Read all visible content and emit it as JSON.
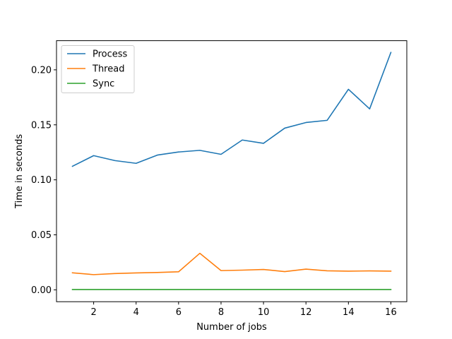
{
  "chart_data": {
    "type": "line",
    "title": "",
    "xlabel": "Number of jobs",
    "ylabel": "Time in seconds",
    "x": [
      1,
      2,
      3,
      4,
      5,
      6,
      7,
      8,
      9,
      10,
      11,
      12,
      13,
      14,
      15,
      16
    ],
    "xlim": [
      0.25,
      16.75
    ],
    "ylim": [
      -0.0108,
      0.2265
    ],
    "xticks": [
      2,
      4,
      6,
      8,
      10,
      12,
      14,
      16
    ],
    "xtick_labels": [
      "2",
      "4",
      "6",
      "8",
      "10",
      "12",
      "14",
      "16"
    ],
    "yticks": [
      0.0,
      0.05,
      0.1,
      0.15,
      0.2
    ],
    "ytick_labels": [
      "0.00",
      "0.05",
      "0.10",
      "0.15",
      "0.20"
    ],
    "grid": false,
    "legend_position": "top-left",
    "series": [
      {
        "name": "Process",
        "color": "#1f77b4",
        "values": [
          0.1123,
          0.122,
          0.1175,
          0.115,
          0.1225,
          0.1253,
          0.1268,
          0.1232,
          0.1362,
          0.1332,
          0.147,
          0.1521,
          0.1541,
          0.1823,
          0.1645,
          0.2158
        ]
      },
      {
        "name": "Thread",
        "color": "#ff7f0e",
        "values": [
          0.0155,
          0.0138,
          0.0148,
          0.0154,
          0.0158,
          0.0164,
          0.0332,
          0.0175,
          0.0179,
          0.0185,
          0.0166,
          0.0188,
          0.0173,
          0.017,
          0.0172,
          0.017
        ]
      },
      {
        "name": "Sync",
        "color": "#2ca02c",
        "values": [
          0.0003,
          0.0003,
          0.0003,
          0.0003,
          0.0003,
          0.0003,
          0.0003,
          0.0003,
          0.0003,
          0.0003,
          0.0003,
          0.0003,
          0.0003,
          0.0003,
          0.0003,
          0.0003
        ]
      }
    ]
  }
}
